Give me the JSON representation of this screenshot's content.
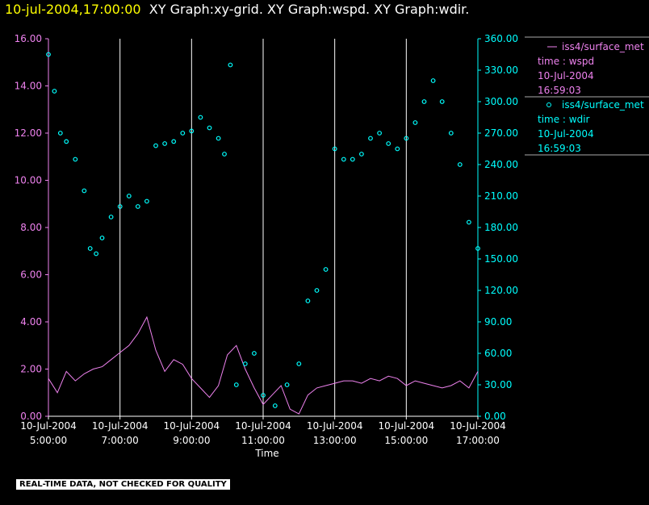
{
  "header": {
    "timestamp": "10-jul-2004,17:00:00",
    "graphs": "XY Graph:xy-grid.  XY Graph:wspd.  XY Graph:wdir."
  },
  "disclaimer": "REAL-TIME DATA, NOT CHECKED FOR QUALITY",
  "colors": {
    "wspd": "#ee82ee",
    "wdir": "#00ffff",
    "grid": "#ffffff",
    "title_ts": "#ffff00",
    "background": "#000000"
  },
  "chart_data": {
    "type": "line",
    "xlabel": "Time",
    "x_ticks": [
      {
        "date": "10-Jul-2004",
        "time": "5:00:00"
      },
      {
        "date": "10-Jul-2004",
        "time": "7:00:00"
      },
      {
        "date": "10-Jul-2004",
        "time": "9:00:00"
      },
      {
        "date": "10-Jul-2004",
        "time": "11:00:00"
      },
      {
        "date": "10-Jul-2004",
        "time": "13:00:00"
      },
      {
        "date": "10-Jul-2004",
        "time": "15:00:00"
      },
      {
        "date": "10-Jul-2004",
        "time": "17:00:00"
      }
    ],
    "x_range": [
      "10-Jul-2004 05:00",
      "10-Jul-2004 17:00"
    ],
    "y_left": {
      "range": [
        0,
        16
      ],
      "ticks": [
        "0.00",
        "2.00",
        "4.00",
        "6.00",
        "8.00",
        "10.00",
        "12.00",
        "14.00",
        "16.00"
      ]
    },
    "y_right": {
      "range": [
        0,
        360
      ],
      "ticks": [
        "0.00",
        "30.00",
        "60.00",
        "90.00",
        "120.00",
        "150.00",
        "180.00",
        "210.00",
        "240.00",
        "270.00",
        "300.00",
        "330.00",
        "360.00"
      ]
    },
    "legend": [
      {
        "name": "iss4/surface_met",
        "var": "time : wspd",
        "date": "10-Jul-2004",
        "time": "16:59:03",
        "marker": "line"
      },
      {
        "name": "iss4/surface_met",
        "var": "time : wdir",
        "date": "10-Jul-2004",
        "time": "16:59:03",
        "marker": "circle"
      }
    ],
    "series": [
      {
        "name": "wspd",
        "axis": "left",
        "style": "line",
        "points": [
          [
            "05:00",
            1.6
          ],
          [
            "05:15",
            1.0
          ],
          [
            "05:30",
            1.9
          ],
          [
            "05:45",
            1.5
          ],
          [
            "06:00",
            1.8
          ],
          [
            "06:15",
            2.0
          ],
          [
            "06:30",
            2.1
          ],
          [
            "06:45",
            2.4
          ],
          [
            "07:00",
            2.7
          ],
          [
            "07:15",
            3.0
          ],
          [
            "07:30",
            3.5
          ],
          [
            "07:45",
            4.2
          ],
          [
            "08:00",
            2.8
          ],
          [
            "08:15",
            1.9
          ],
          [
            "08:30",
            2.4
          ],
          [
            "08:45",
            2.2
          ],
          [
            "09:00",
            1.6
          ],
          [
            "09:15",
            1.2
          ],
          [
            "09:30",
            0.8
          ],
          [
            "09:45",
            1.3
          ],
          [
            "10:00",
            2.6
          ],
          [
            "10:15",
            3.0
          ],
          [
            "10:30",
            2.0
          ],
          [
            "10:45",
            1.2
          ],
          [
            "11:00",
            0.5
          ],
          [
            "11:15",
            0.9
          ],
          [
            "11:30",
            1.3
          ],
          [
            "11:45",
            0.3
          ],
          [
            "12:00",
            0.1
          ],
          [
            "12:15",
            0.9
          ],
          [
            "12:30",
            1.2
          ],
          [
            "12:45",
            1.3
          ],
          [
            "13:00",
            1.4
          ],
          [
            "13:15",
            1.5
          ],
          [
            "13:30",
            1.5
          ],
          [
            "13:45",
            1.4
          ],
          [
            "14:00",
            1.6
          ],
          [
            "14:15",
            1.5
          ],
          [
            "14:30",
            1.7
          ],
          [
            "14:45",
            1.6
          ],
          [
            "15:00",
            1.3
          ],
          [
            "15:15",
            1.5
          ],
          [
            "15:30",
            1.4
          ],
          [
            "15:45",
            1.3
          ],
          [
            "16:00",
            1.2
          ],
          [
            "16:15",
            1.3
          ],
          [
            "16:30",
            1.5
          ],
          [
            "16:45",
            1.2
          ],
          [
            "17:00",
            1.9
          ]
        ]
      },
      {
        "name": "wdir",
        "axis": "right",
        "style": "circles",
        "points": [
          [
            "05:00",
            345
          ],
          [
            "05:10",
            310
          ],
          [
            "05:20",
            270
          ],
          [
            "05:30",
            262
          ],
          [
            "05:45",
            245
          ],
          [
            "06:00",
            215
          ],
          [
            "06:10",
            160
          ],
          [
            "06:20",
            155
          ],
          [
            "06:30",
            170
          ],
          [
            "06:45",
            190
          ],
          [
            "07:00",
            200
          ],
          [
            "07:15",
            210
          ],
          [
            "07:30",
            200
          ],
          [
            "07:45",
            205
          ],
          [
            "08:00",
            258
          ],
          [
            "08:15",
            260
          ],
          [
            "08:30",
            262
          ],
          [
            "08:45",
            270
          ],
          [
            "09:00",
            272
          ],
          [
            "09:15",
            285
          ],
          [
            "09:30",
            275
          ],
          [
            "09:45",
            265
          ],
          [
            "09:55",
            250
          ],
          [
            "10:05",
            335
          ],
          [
            "10:15",
            30
          ],
          [
            "10:30",
            50
          ],
          [
            "10:45",
            60
          ],
          [
            "11:00",
            20
          ],
          [
            "11:20",
            10
          ],
          [
            "11:40",
            30
          ],
          [
            "12:00",
            50
          ],
          [
            "12:15",
            110
          ],
          [
            "12:30",
            120
          ],
          [
            "12:45",
            140
          ],
          [
            "13:00",
            255
          ],
          [
            "13:15",
            245
          ],
          [
            "13:30",
            245
          ],
          [
            "13:45",
            250
          ],
          [
            "14:00",
            265
          ],
          [
            "14:15",
            270
          ],
          [
            "14:30",
            260
          ],
          [
            "14:45",
            255
          ],
          [
            "15:00",
            265
          ],
          [
            "15:15",
            280
          ],
          [
            "15:30",
            300
          ],
          [
            "15:45",
            320
          ],
          [
            "16:00",
            300
          ],
          [
            "16:15",
            270
          ],
          [
            "16:30",
            240
          ],
          [
            "16:45",
            185
          ],
          [
            "17:00",
            160
          ]
        ]
      }
    ]
  }
}
